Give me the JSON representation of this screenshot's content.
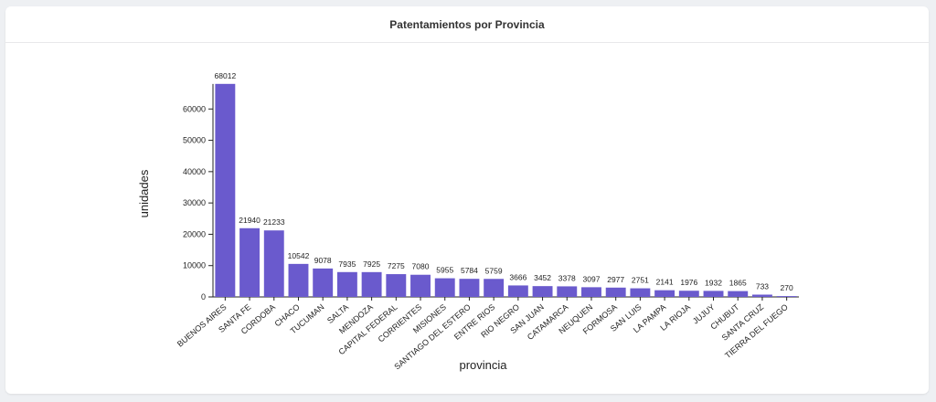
{
  "title": "Patentamientos por Provincia",
  "chart_data": {
    "type": "bar",
    "title": "Patentamientos por Provincia",
    "xlabel": "provincia",
    "ylabel": "unidades",
    "ylim": [
      0,
      70000
    ],
    "yticks": [
      0,
      10000,
      20000,
      30000,
      40000,
      50000,
      60000
    ],
    "grid": false,
    "bar_color": "#6a5acd",
    "categories": [
      "BUENOS AIRES",
      "SANTA FE",
      "CORDOBA",
      "CHACO",
      "TUCUMAN",
      "SALTA",
      "MENDOZA",
      "CAPITAL FEDERAL",
      "CORRIENTES",
      "MISIONES",
      "SANTIAGO DEL ESTERO",
      "ENTRE RIOS",
      "RIO NEGRO",
      "SAN JUAN",
      "CATAMARCA",
      "NEUQUEN",
      "FORMOSA",
      "SAN LUIS",
      "LA PAMPA",
      "LA RIOJA",
      "JUJUY",
      "CHUBUT",
      "SANTA CRUZ",
      "TIERRA DEL FUEGO"
    ],
    "values": [
      68012,
      21940,
      21233,
      10542,
      9078,
      7935,
      7925,
      7275,
      7080,
      5955,
      5784,
      5759,
      3666,
      3452,
      3378,
      3097,
      2977,
      2751,
      2141,
      1976,
      1932,
      1865,
      733,
      270
    ]
  }
}
